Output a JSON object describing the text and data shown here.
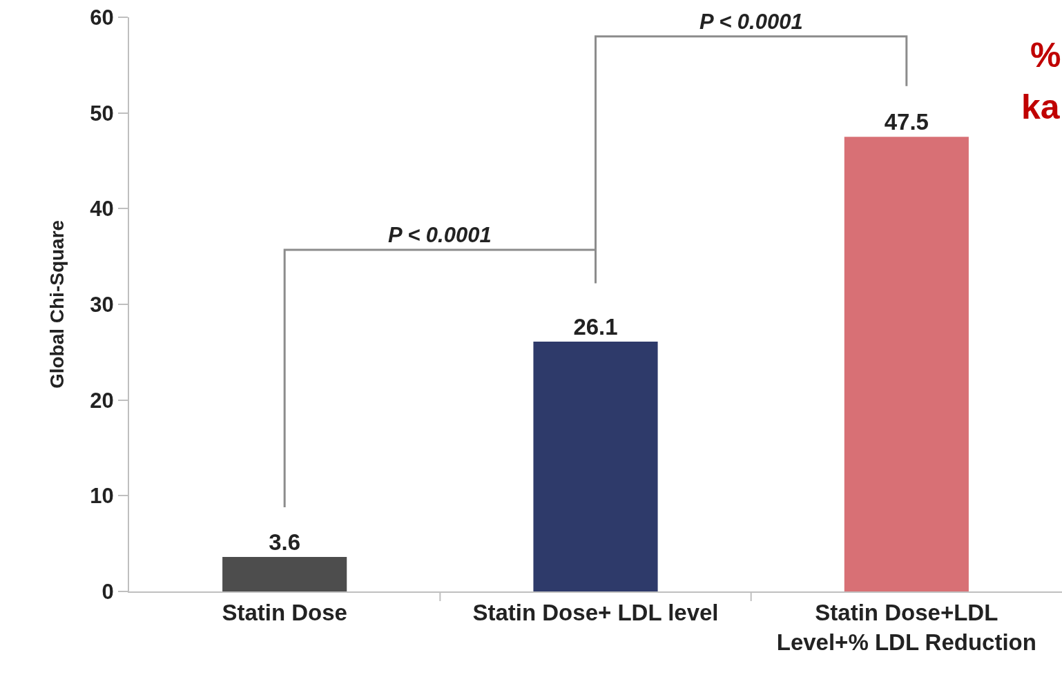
{
  "chart_data": {
    "type": "bar",
    "ylabel": "Global Chi-Square",
    "categories": [
      "Statin Dose",
      "Statin Dose+ LDL level",
      "Statin Dose+LDL\nLevel+% LDL Reduction"
    ],
    "values": [
      3.6,
      26.1,
      47.5
    ],
    "colors": [
      "#4d4d4d",
      "#2e3a6a",
      "#d87075"
    ],
    "ylim": [
      0,
      60
    ],
    "yticks": [
      0,
      10,
      20,
      30,
      40,
      50,
      60
    ],
    "grid": false,
    "data_labels": true,
    "annotations": [
      "P < 0.0001",
      "P < 0.0001",
      "%",
      "ka"
    ]
  }
}
